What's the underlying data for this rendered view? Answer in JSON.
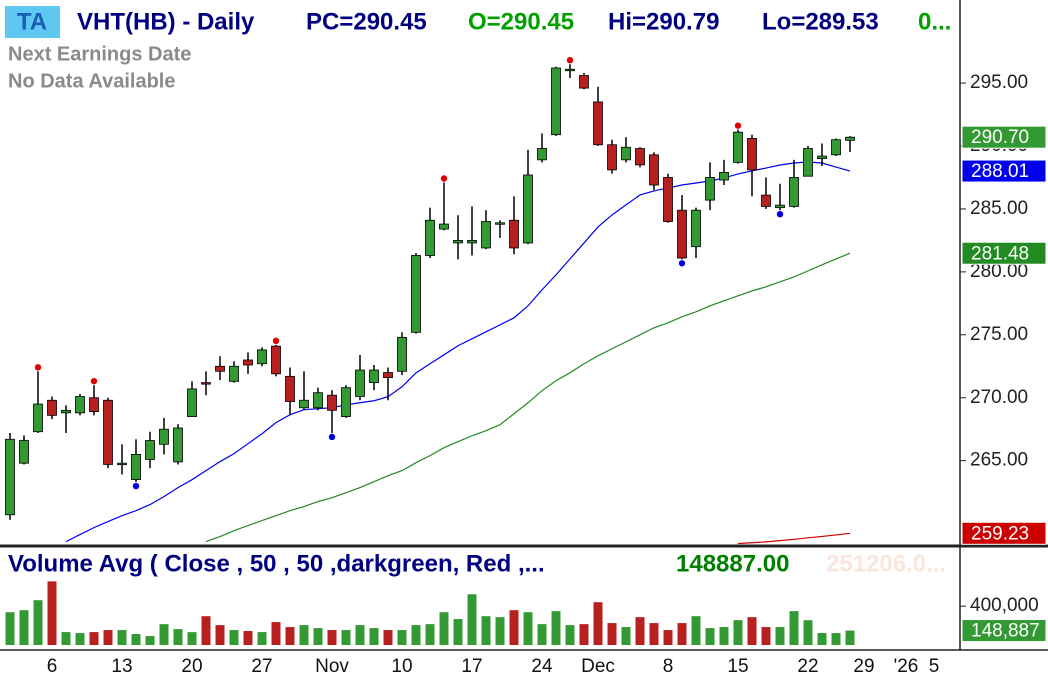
{
  "header": {
    "badge": "TA",
    "symbol": "VHT(HB) - Daily",
    "pc": "PC=290.45",
    "open": "O=290.45",
    "high": "Hi=290.79",
    "low": "Lo=289.53",
    "extra": "0..."
  },
  "earnings": {
    "line1": "Next Earnings Date",
    "line2": "No Data Available"
  },
  "chart_data": [
    {
      "type": "candlestick",
      "categories": [
        null,
        null,
        null,
        "6",
        null,
        null,
        null,
        null,
        "13",
        null,
        null,
        null,
        null,
        "20",
        null,
        null,
        null,
        null,
        "27",
        null,
        null,
        null,
        null,
        "Nov",
        null,
        null,
        null,
        null,
        "10",
        null,
        null,
        null,
        null,
        "17",
        null,
        null,
        null,
        null,
        "24",
        null,
        null,
        null,
        "Dec",
        null,
        null,
        null,
        null,
        "8",
        null,
        null,
        null,
        null,
        "15",
        null,
        null,
        null,
        null,
        "22",
        null,
        null,
        null,
        "29",
        null,
        null,
        "'26",
        null,
        "5"
      ],
      "open": [
        260.7,
        264.8,
        267.3,
        269.8,
        268.8,
        268.8,
        270.0,
        269.8,
        264.7,
        263.5,
        265.1,
        266.3,
        264.9,
        268.5,
        271.2,
        272.5,
        271.3,
        273.0,
        272.7,
        274.1,
        271.7,
        269.2,
        269.2,
        270.2,
        268.5,
        270.1,
        271.2,
        272.0,
        272.1,
        275.2,
        281.3,
        283.4,
        282.3,
        282.3,
        281.9,
        283.8,
        284.1,
        282.3,
        288.9,
        290.9,
        296.0,
        295.6,
        293.5,
        290.1,
        288.9,
        289.8,
        289.3,
        287.5,
        284.9,
        282.0,
        285.7,
        287.3,
        288.7,
        290.6,
        286.1,
        285.1,
        285.2,
        287.6,
        289.0,
        289.3,
        290.45,
        null,
        null,
        null,
        null,
        null,
        null
      ],
      "high": [
        267.2,
        267.0,
        272.1,
        270.1,
        269.4,
        270.3,
        271.0,
        270.0,
        266.3,
        266.7,
        267.3,
        268.4,
        267.9,
        271.3,
        272.1,
        273.3,
        272.9,
        273.6,
        274.0,
        274.2,
        272.4,
        272.1,
        270.8,
        270.6,
        271.0,
        273.4,
        272.6,
        272.4,
        275.2,
        281.5,
        285.1,
        287.1,
        284.5,
        285.2,
        284.9,
        284.1,
        286.0,
        289.7,
        291.0,
        296.3,
        296.5,
        295.8,
        294.7,
        290.5,
        290.7,
        289.9,
        289.5,
        287.8,
        286.1,
        285.1,
        288.7,
        288.9,
        291.3,
        290.9,
        287.5,
        287.0,
        288.9,
        290.0,
        290.2,
        290.6,
        290.79,
        null,
        null,
        null,
        null,
        null,
        null
      ],
      "low": [
        260.3,
        264.7,
        267.2,
        268.3,
        267.2,
        268.6,
        268.6,
        264.4,
        263.9,
        263.3,
        264.4,
        265.5,
        264.7,
        268.5,
        270.2,
        271.4,
        271.2,
        271.9,
        272.5,
        271.7,
        268.6,
        269.0,
        269.0,
        267.2,
        268.4,
        269.8,
        270.6,
        269.8,
        271.8,
        275.1,
        281.1,
        283.3,
        281.0,
        281.3,
        281.8,
        282.7,
        281.4,
        282.2,
        288.7,
        290.8,
        295.4,
        294.5,
        290.0,
        287.8,
        288.7,
        288.3,
        286.5,
        283.9,
        281.0,
        281.1,
        284.9,
        286.9,
        288.6,
        286.0,
        285.0,
        284.9,
        285.1,
        287.6,
        288.4,
        289.2,
        289.53,
        null,
        null,
        null,
        null,
        null,
        null
      ],
      "close": [
        266.7,
        266.6,
        269.5,
        268.6,
        269.0,
        270.1,
        268.9,
        264.7,
        264.8,
        265.5,
        266.6,
        267.5,
        267.6,
        270.7,
        271.1,
        272.1,
        272.5,
        272.6,
        273.8,
        271.9,
        269.7,
        269.8,
        270.4,
        269.0,
        270.8,
        272.2,
        272.2,
        271.6,
        274.8,
        281.3,
        284.1,
        283.8,
        282.5,
        282.5,
        284.0,
        283.9,
        281.9,
        287.7,
        289.8,
        296.2,
        296.1,
        294.6,
        290.1,
        288.1,
        289.9,
        288.5,
        286.9,
        284.0,
        281.1,
        284.9,
        287.5,
        287.9,
        291.1,
        288.1,
        285.2,
        285.3,
        287.5,
        289.8,
        289.2,
        290.5,
        290.7,
        null,
        null,
        null,
        null,
        null,
        null
      ],
      "value_labels": [
        null,
        null,
        null,
        null,
        null,
        null,
        null,
        null,
        null,
        null,
        null,
        null,
        null,
        null,
        null,
        null,
        null,
        null,
        null,
        null,
        null,
        null,
        null,
        null,
        null,
        null,
        null,
        null,
        null,
        null,
        null,
        null,
        null,
        null,
        null,
        null,
        null,
        null,
        null,
        null,
        null,
        null,
        null,
        null,
        null,
        null,
        null,
        null,
        null,
        null,
        null,
        null,
        null,
        null,
        null,
        null,
        null,
        null,
        null,
        null,
        "290.70",
        null,
        null,
        null,
        null,
        null,
        null
      ],
      "pivots": [
        null,
        null,
        "high",
        null,
        null,
        null,
        "high",
        null,
        null,
        "low",
        null,
        null,
        null,
        null,
        null,
        null,
        null,
        null,
        null,
        "high",
        null,
        null,
        null,
        "low",
        null,
        null,
        null,
        null,
        null,
        null,
        null,
        "high",
        null,
        null,
        null,
        null,
        null,
        null,
        null,
        null,
        "high",
        null,
        null,
        null,
        null,
        null,
        null,
        null,
        "low",
        null,
        null,
        null,
        "high",
        null,
        null,
        "low",
        null,
        null,
        null,
        null,
        null,
        null,
        null,
        null,
        null,
        null,
        null
      ],
      "pivot_colors": {
        "high": "#e00000",
        "low": "#0000e0"
      },
      "up_color": "#339933",
      "down_color": "#b82020",
      "series": [
        {
          "color": "#cc0000",
          "values": [
            null,
            null,
            null,
            null,
            null,
            null,
            null,
            null,
            null,
            null,
            null,
            null,
            null,
            null,
            null,
            null,
            null,
            null,
            null,
            null,
            null,
            null,
            null,
            null,
            null,
            null,
            null,
            null,
            null,
            null,
            null,
            null,
            null,
            null,
            null,
            null,
            null,
            null,
            null,
            null,
            null,
            null,
            null,
            null,
            null,
            null,
            null,
            null,
            null,
            null,
            null,
            null,
            258.42,
            258.48,
            258.55,
            258.65,
            258.75,
            258.87,
            258.98,
            259.1,
            259.23,
            null,
            null,
            null,
            null,
            null,
            null
          ]
        },
        {
          "color": "#228b22",
          "values": [
            null,
            null,
            null,
            null,
            null,
            null,
            null,
            null,
            null,
            null,
            null,
            null,
            null,
            null,
            258.57,
            258.97,
            259.44,
            259.84,
            260.24,
            260.63,
            261.03,
            261.35,
            261.75,
            262.06,
            262.46,
            262.86,
            263.33,
            263.81,
            264.21,
            264.84,
            265.4,
            266.03,
            266.51,
            266.98,
            267.38,
            267.86,
            268.73,
            269.6,
            270.56,
            271.35,
            271.98,
            272.7,
            273.33,
            273.89,
            274.44,
            275.0,
            275.56,
            275.95,
            276.43,
            276.83,
            277.3,
            277.7,
            278.1,
            278.49,
            278.81,
            279.21,
            279.6,
            280.08,
            280.56,
            281.03,
            281.48,
            null,
            null,
            null,
            null,
            null,
            null
          ]
        },
        {
          "color": "#0000ee",
          "values": [
            null,
            null,
            null,
            null,
            258.57,
            259.13,
            259.68,
            260.16,
            260.63,
            261.03,
            261.51,
            262.14,
            262.86,
            263.49,
            264.21,
            264.92,
            265.56,
            266.35,
            267.14,
            268.02,
            268.65,
            269.05,
            269.13,
            269.21,
            269.44,
            269.6,
            269.76,
            270.08,
            270.87,
            271.98,
            272.7,
            273.41,
            274.13,
            274.68,
            275.24,
            275.79,
            276.35,
            277.3,
            278.57,
            279.76,
            281.03,
            282.3,
            283.57,
            284.52,
            285.32,
            286.11,
            286.43,
            286.67,
            286.9,
            287.06,
            287.22,
            287.46,
            287.78,
            288.02,
            288.25,
            288.49,
            288.65,
            288.73,
            288.65,
            288.33,
            288.01,
            null,
            null,
            null,
            null,
            null,
            null
          ]
        }
      ],
      "ylim": [
        258.3,
        301.6
      ],
      "yticks": [
        {
          "value": 295,
          "label": "295.00"
        },
        {
          "value": 290,
          "label": "290.00"
        },
        {
          "value": 285,
          "label": "285.00"
        },
        {
          "value": 280,
          "label": "280.00"
        },
        {
          "value": 275,
          "label": "275.00"
        },
        {
          "value": 270,
          "label": "270.00"
        },
        {
          "value": 265,
          "label": "265.00"
        }
      ]
    },
    {
      "type": "bar",
      "title": "Volume Avg ( Close , 50 , 50 ,darkgreen, Red ,...",
      "annotations": [
        "148887.00",
        "251206.0..."
      ],
      "values": [
        338000,
        359000,
        462000,
        656000,
        133000,
        123000,
        133000,
        154000,
        154000,
        113000,
        92000,
        215000,
        164000,
        133000,
        297000,
        205000,
        154000,
        144000,
        133000,
        236000,
        185000,
        205000,
        174000,
        154000,
        154000,
        205000,
        174000,
        154000,
        154000,
        205000,
        215000,
        338000,
        267000,
        523000,
        297000,
        287000,
        359000,
        338000,
        215000,
        349000,
        205000,
        215000,
        441000,
        226000,
        185000,
        287000,
        226000,
        154000,
        226000,
        297000,
        174000,
        185000,
        256000,
        287000,
        185000,
        185000,
        349000,
        256000,
        123000,
        123000,
        148887,
        null,
        null,
        null,
        null,
        null,
        null
      ],
      "value_labels": [
        null,
        null,
        null,
        null,
        null,
        null,
        null,
        null,
        null,
        null,
        null,
        null,
        null,
        null,
        null,
        null,
        null,
        null,
        null,
        null,
        null,
        null,
        null,
        null,
        null,
        null,
        null,
        null,
        null,
        null,
        null,
        null,
        null,
        null,
        null,
        null,
        null,
        null,
        null,
        null,
        null,
        null,
        null,
        null,
        null,
        null,
        null,
        null,
        null,
        null,
        null,
        null,
        null,
        null,
        null,
        null,
        null,
        null,
        null,
        null,
        "148,887",
        null,
        null,
        null,
        null,
        null,
        null
      ],
      "color": "#339933",
      "ylim": [
        0,
        1000000
      ],
      "yticks": [
        {
          "value": 400000,
          "label": "400,000"
        }
      ]
    }
  ]
}
